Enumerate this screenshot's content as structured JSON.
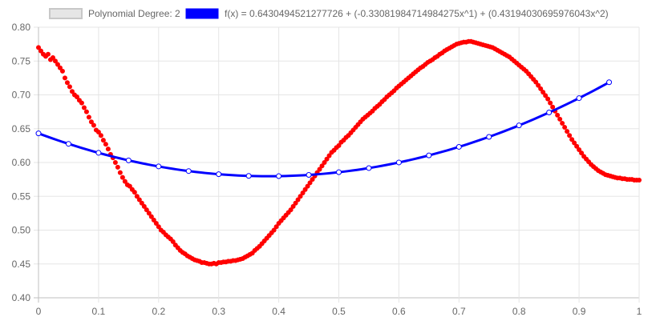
{
  "chart_data": {
    "type": "scatter",
    "legend": {
      "placement": "top-center",
      "entries": [
        {
          "label": "Polynomial Degree: 2",
          "fill": "#e6e6e6",
          "stroke": "#c8c8c8"
        },
        {
          "label": "f(x) = 0.6430494521277726 + (-0.33081984714984275x^1) + (0.43194030695976043x^2)",
          "fill": "#0000ff",
          "stroke": "#0000ff"
        }
      ]
    },
    "x_ticks": [
      "0",
      "0.1",
      "0.2",
      "0.3",
      "0.4",
      "0.5",
      "0.6",
      "0.7",
      "0.8",
      "0.9",
      "1"
    ],
    "y_ticks": [
      "0.40",
      "0.45",
      "0.50",
      "0.55",
      "0.60",
      "0.65",
      "0.70",
      "0.75",
      "0.80"
    ],
    "xlim": [
      0,
      1
    ],
    "ylim": [
      0.4,
      0.8
    ],
    "grid": true,
    "fit": {
      "coefficients": [
        0.6430494521277726,
        -0.33081984714984275,
        0.43194030695976043
      ],
      "x_range": [
        0,
        0.95
      ],
      "marker_x": [
        0,
        0.05,
        0.1,
        0.15,
        0.2,
        0.25,
        0.3,
        0.35,
        0.4,
        0.45,
        0.5,
        0.55,
        0.6,
        0.65,
        0.7,
        0.75,
        0.8,
        0.85,
        0.9,
        0.95
      ],
      "color": "#0000ff"
    },
    "scatter": {
      "color": "#ff0000",
      "points": [
        [
          0.0,
          0.77
        ],
        [
          0.004,
          0.765
        ],
        [
          0.008,
          0.76
        ],
        [
          0.012,
          0.757
        ],
        [
          0.016,
          0.76
        ],
        [
          0.02,
          0.752
        ],
        [
          0.024,
          0.755
        ],
        [
          0.028,
          0.75
        ],
        [
          0.032,
          0.745
        ],
        [
          0.036,
          0.74
        ],
        [
          0.04,
          0.735
        ],
        [
          0.044,
          0.725
        ],
        [
          0.048,
          0.718
        ],
        [
          0.052,
          0.712
        ],
        [
          0.056,
          0.705
        ],
        [
          0.06,
          0.7
        ],
        [
          0.064,
          0.697
        ],
        [
          0.068,
          0.692
        ],
        [
          0.072,
          0.688
        ],
        [
          0.076,
          0.681
        ],
        [
          0.08,
          0.675
        ],
        [
          0.084,
          0.667
        ],
        [
          0.088,
          0.66
        ],
        [
          0.092,
          0.655
        ],
        [
          0.096,
          0.648
        ],
        [
          0.1,
          0.645
        ],
        [
          0.104,
          0.64
        ],
        [
          0.108,
          0.633
        ],
        [
          0.112,
          0.627
        ],
        [
          0.116,
          0.62
        ],
        [
          0.12,
          0.612
        ],
        [
          0.124,
          0.607
        ],
        [
          0.128,
          0.6
        ],
        [
          0.132,
          0.593
        ],
        [
          0.136,
          0.585
        ],
        [
          0.14,
          0.578
        ],
        [
          0.144,
          0.572
        ],
        [
          0.148,
          0.567
        ],
        [
          0.152,
          0.565
        ],
        [
          0.156,
          0.56
        ],
        [
          0.16,
          0.556
        ],
        [
          0.164,
          0.55
        ],
        [
          0.168,
          0.545
        ],
        [
          0.172,
          0.54
        ],
        [
          0.176,
          0.535
        ],
        [
          0.18,
          0.53
        ],
        [
          0.184,
          0.525
        ],
        [
          0.188,
          0.52
        ],
        [
          0.192,
          0.515
        ],
        [
          0.196,
          0.51
        ],
        [
          0.2,
          0.505
        ],
        [
          0.204,
          0.5
        ],
        [
          0.208,
          0.497
        ],
        [
          0.212,
          0.493
        ],
        [
          0.216,
          0.49
        ],
        [
          0.22,
          0.487
        ],
        [
          0.224,
          0.483
        ],
        [
          0.228,
          0.478
        ],
        [
          0.232,
          0.474
        ],
        [
          0.236,
          0.47
        ],
        [
          0.24,
          0.467
        ],
        [
          0.244,
          0.465
        ],
        [
          0.248,
          0.462
        ],
        [
          0.252,
          0.46
        ],
        [
          0.256,
          0.458
        ],
        [
          0.26,
          0.456
        ],
        [
          0.264,
          0.455
        ],
        [
          0.268,
          0.454
        ],
        [
          0.272,
          0.452
        ],
        [
          0.276,
          0.452
        ],
        [
          0.28,
          0.451
        ],
        [
          0.284,
          0.45
        ],
        [
          0.288,
          0.45
        ],
        [
          0.292,
          0.451
        ],
        [
          0.296,
          0.45
        ],
        [
          0.3,
          0.452
        ],
        [
          0.304,
          0.452
        ],
        [
          0.308,
          0.453
        ],
        [
          0.312,
          0.453
        ],
        [
          0.316,
          0.454
        ],
        [
          0.32,
          0.454
        ],
        [
          0.324,
          0.455
        ],
        [
          0.328,
          0.455
        ],
        [
          0.332,
          0.456
        ],
        [
          0.336,
          0.457
        ],
        [
          0.34,
          0.458
        ],
        [
          0.344,
          0.46
        ],
        [
          0.348,
          0.462
        ],
        [
          0.352,
          0.464
        ],
        [
          0.356,
          0.466
        ],
        [
          0.36,
          0.47
        ],
        [
          0.364,
          0.473
        ],
        [
          0.368,
          0.476
        ],
        [
          0.372,
          0.48
        ],
        [
          0.376,
          0.484
        ],
        [
          0.38,
          0.488
        ],
        [
          0.384,
          0.492
        ],
        [
          0.388,
          0.496
        ],
        [
          0.392,
          0.5
        ],
        [
          0.396,
          0.505
        ],
        [
          0.4,
          0.51
        ],
        [
          0.404,
          0.514
        ],
        [
          0.408,
          0.518
        ],
        [
          0.412,
          0.522
        ],
        [
          0.416,
          0.526
        ],
        [
          0.42,
          0.53
        ],
        [
          0.424,
          0.535
        ],
        [
          0.428,
          0.54
        ],
        [
          0.432,
          0.545
        ],
        [
          0.436,
          0.55
        ],
        [
          0.44,
          0.555
        ],
        [
          0.444,
          0.56
        ],
        [
          0.448,
          0.565
        ],
        [
          0.452,
          0.57
        ],
        [
          0.456,
          0.575
        ],
        [
          0.46,
          0.58
        ],
        [
          0.464,
          0.585
        ],
        [
          0.468,
          0.59
        ],
        [
          0.472,
          0.595
        ],
        [
          0.476,
          0.6
        ],
        [
          0.48,
          0.605
        ],
        [
          0.484,
          0.61
        ],
        [
          0.488,
          0.615
        ],
        [
          0.492,
          0.618
        ],
        [
          0.496,
          0.622
        ],
        [
          0.5,
          0.625
        ],
        [
          0.504,
          0.63
        ],
        [
          0.508,
          0.633
        ],
        [
          0.512,
          0.637
        ],
        [
          0.516,
          0.64
        ],
        [
          0.52,
          0.644
        ],
        [
          0.524,
          0.648
        ],
        [
          0.528,
          0.652
        ],
        [
          0.532,
          0.656
        ],
        [
          0.536,
          0.66
        ],
        [
          0.54,
          0.664
        ],
        [
          0.544,
          0.667
        ],
        [
          0.548,
          0.67
        ],
        [
          0.552,
          0.673
        ],
        [
          0.556,
          0.676
        ],
        [
          0.56,
          0.68
        ],
        [
          0.564,
          0.683
        ],
        [
          0.568,
          0.686
        ],
        [
          0.572,
          0.69
        ],
        [
          0.576,
          0.693
        ],
        [
          0.58,
          0.697
        ],
        [
          0.584,
          0.7
        ],
        [
          0.588,
          0.703
        ],
        [
          0.592,
          0.706
        ],
        [
          0.596,
          0.71
        ],
        [
          0.6,
          0.713
        ],
        [
          0.604,
          0.716
        ],
        [
          0.608,
          0.719
        ],
        [
          0.612,
          0.722
        ],
        [
          0.616,
          0.725
        ],
        [
          0.62,
          0.728
        ],
        [
          0.624,
          0.731
        ],
        [
          0.628,
          0.734
        ],
        [
          0.632,
          0.737
        ],
        [
          0.636,
          0.74
        ],
        [
          0.64,
          0.742
        ],
        [
          0.644,
          0.745
        ],
        [
          0.648,
          0.748
        ],
        [
          0.652,
          0.75
        ],
        [
          0.656,
          0.752
        ],
        [
          0.66,
          0.755
        ],
        [
          0.664,
          0.757
        ],
        [
          0.668,
          0.76
        ],
        [
          0.672,
          0.762
        ],
        [
          0.676,
          0.765
        ],
        [
          0.68,
          0.767
        ],
        [
          0.684,
          0.769
        ],
        [
          0.688,
          0.771
        ],
        [
          0.692,
          0.773
        ],
        [
          0.696,
          0.775
        ],
        [
          0.7,
          0.776
        ],
        [
          0.704,
          0.777
        ],
        [
          0.708,
          0.778
        ],
        [
          0.712,
          0.778
        ],
        [
          0.716,
          0.779
        ],
        [
          0.72,
          0.779
        ],
        [
          0.724,
          0.778
        ],
        [
          0.728,
          0.777
        ],
        [
          0.732,
          0.776
        ],
        [
          0.736,
          0.775
        ],
        [
          0.74,
          0.774
        ],
        [
          0.744,
          0.773
        ],
        [
          0.748,
          0.772
        ],
        [
          0.752,
          0.771
        ],
        [
          0.756,
          0.77
        ],
        [
          0.76,
          0.768
        ],
        [
          0.764,
          0.766
        ],
        [
          0.768,
          0.764
        ],
        [
          0.772,
          0.762
        ],
        [
          0.776,
          0.76
        ],
        [
          0.78,
          0.758
        ],
        [
          0.784,
          0.756
        ],
        [
          0.788,
          0.753
        ],
        [
          0.792,
          0.75
        ],
        [
          0.796,
          0.747
        ],
        [
          0.8,
          0.744
        ],
        [
          0.804,
          0.741
        ],
        [
          0.808,
          0.738
        ],
        [
          0.812,
          0.735
        ],
        [
          0.816,
          0.731
        ],
        [
          0.82,
          0.727
        ],
        [
          0.824,
          0.723
        ],
        [
          0.828,
          0.719
        ],
        [
          0.832,
          0.714
        ],
        [
          0.836,
          0.709
        ],
        [
          0.84,
          0.704
        ],
        [
          0.844,
          0.699
        ],
        [
          0.848,
          0.694
        ],
        [
          0.852,
          0.688
        ],
        [
          0.856,
          0.682
        ],
        [
          0.86,
          0.676
        ],
        [
          0.864,
          0.67
        ],
        [
          0.868,
          0.664
        ],
        [
          0.872,
          0.658
        ],
        [
          0.876,
          0.652
        ],
        [
          0.88,
          0.646
        ],
        [
          0.884,
          0.64
        ],
        [
          0.888,
          0.634
        ],
        [
          0.892,
          0.629
        ],
        [
          0.896,
          0.624
        ],
        [
          0.9,
          0.619
        ],
        [
          0.904,
          0.614
        ],
        [
          0.908,
          0.609
        ],
        [
          0.912,
          0.605
        ],
        [
          0.916,
          0.601
        ],
        [
          0.92,
          0.597
        ],
        [
          0.924,
          0.594
        ],
        [
          0.928,
          0.591
        ],
        [
          0.932,
          0.588
        ],
        [
          0.936,
          0.586
        ],
        [
          0.94,
          0.584
        ],
        [
          0.944,
          0.582
        ],
        [
          0.948,
          0.581
        ],
        [
          0.952,
          0.58
        ],
        [
          0.956,
          0.579
        ],
        [
          0.96,
          0.578
        ],
        [
          0.964,
          0.577
        ],
        [
          0.968,
          0.577
        ],
        [
          0.972,
          0.576
        ],
        [
          0.976,
          0.576
        ],
        [
          0.98,
          0.575
        ],
        [
          0.984,
          0.575
        ],
        [
          0.988,
          0.575
        ],
        [
          0.992,
          0.574
        ],
        [
          0.996,
          0.574
        ],
        [
          1.0,
          0.574
        ]
      ]
    }
  }
}
